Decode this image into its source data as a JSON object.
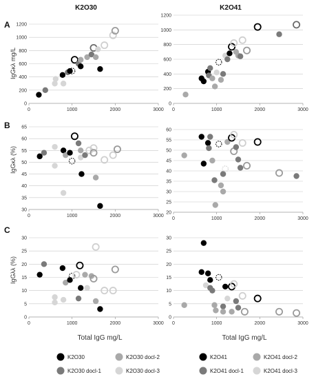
{
  "headers": [
    "K2O30",
    "K2O41"
  ],
  "row_labels": [
    "A",
    "B",
    "C"
  ],
  "x_axis_label": "Total IgG mg/L",
  "colors": {
    "fill": {
      "s1": "#000000",
      "s2": "#7a7a7a",
      "s3": "#a9a9a9",
      "s4": "#d6d6d6"
    },
    "stroke": {
      "s1": "#000000",
      "s2": "#6a6a6a",
      "s3": "#9a9a9a",
      "s4": "#cfcfcf"
    }
  },
  "legend": {
    "K2O30": [
      {
        "label": "K2O30",
        "series": "s1"
      },
      {
        "label": "K2O30 docl-2",
        "series": "s3"
      },
      {
        "label": "K2O30 docl-1",
        "series": "s2"
      },
      {
        "label": "K2O30 docl-3",
        "series": "s4"
      }
    ],
    "K2O41": [
      {
        "label": "K2O41",
        "series": "s1"
      },
      {
        "label": "K2O41 docl-2",
        "series": "s3"
      },
      {
        "label": "K2O41 docl-1",
        "series": "s2"
      },
      {
        "label": "K2O41 docl-3",
        "series": "s4"
      }
    ]
  },
  "chart_data": [
    {
      "panel": "A",
      "group": "K2O30",
      "type": "scatter",
      "xlim": [
        0,
        3000
      ],
      "xticks": [
        0,
        1000,
        2000,
        3000
      ],
      "ylim": [
        0,
        1200
      ],
      "yticks": [
        0,
        200,
        400,
        600,
        800,
        1000,
        1200
      ],
      "ylabel": "IgGκλ mg/L",
      "points": [
        {
          "x": 230,
          "y": 130,
          "s": "s1",
          "st": "filled"
        },
        {
          "x": 380,
          "y": 200,
          "s": "s2",
          "st": "filled"
        },
        {
          "x": 600,
          "y": 300,
          "s": "s4",
          "st": "filled"
        },
        {
          "x": 620,
          "y": 370,
          "s": "s4",
          "st": "filled"
        },
        {
          "x": 800,
          "y": 300,
          "s": "s4",
          "st": "filled"
        },
        {
          "x": 780,
          "y": 430,
          "s": "s1",
          "st": "filled"
        },
        {
          "x": 900,
          "y": 470,
          "s": "s2",
          "st": "filled"
        },
        {
          "x": 950,
          "y": 490,
          "s": "s1",
          "st": "filled"
        },
        {
          "x": 1000,
          "y": 490,
          "s": "s1",
          "st": "dashed"
        },
        {
          "x": 1060,
          "y": 660,
          "s": "s1",
          "st": "open"
        },
        {
          "x": 1150,
          "y": 600,
          "s": "s2",
          "st": "filled"
        },
        {
          "x": 1200,
          "y": 560,
          "s": "s1",
          "st": "filled"
        },
        {
          "x": 1200,
          "y": 660,
          "s": "s3",
          "st": "filled"
        },
        {
          "x": 1350,
          "y": 700,
          "s": "s3",
          "st": "filled"
        },
        {
          "x": 1450,
          "y": 740,
          "s": "s2",
          "st": "filled"
        },
        {
          "x": 1500,
          "y": 840,
          "s": "s2",
          "st": "open"
        },
        {
          "x": 1550,
          "y": 700,
          "s": "s3",
          "st": "filled"
        },
        {
          "x": 1650,
          "y": 520,
          "s": "s1",
          "st": "filled"
        },
        {
          "x": 1600,
          "y": 820,
          "s": "s4",
          "st": "filled"
        },
        {
          "x": 1750,
          "y": 880,
          "s": "s4",
          "st": "open"
        },
        {
          "x": 1950,
          "y": 1030,
          "s": "s4",
          "st": "open"
        },
        {
          "x": 2000,
          "y": 1100,
          "s": "s3",
          "st": "open"
        }
      ]
    },
    {
      "panel": "A",
      "group": "K2O41",
      "type": "scatter",
      "xlim": [
        0,
        3000
      ],
      "xticks": [
        0,
        1000,
        2000,
        3000
      ],
      "ylim": [
        0,
        1200
      ],
      "yticks": [
        0,
        200,
        400,
        600,
        800,
        1000,
        1200
      ],
      "ylabel": "",
      "points": [
        {
          "x": 280,
          "y": 120,
          "s": "s3",
          "st": "filled"
        },
        {
          "x": 650,
          "y": 340,
          "s": "s1",
          "st": "filled"
        },
        {
          "x": 700,
          "y": 300,
          "s": "s1",
          "st": "filled"
        },
        {
          "x": 800,
          "y": 430,
          "s": "s1",
          "st": "filled"
        },
        {
          "x": 820,
          "y": 380,
          "s": "s2",
          "st": "filled"
        },
        {
          "x": 850,
          "y": 480,
          "s": "s2",
          "st": "filled"
        },
        {
          "x": 900,
          "y": 340,
          "s": "s3",
          "st": "filled"
        },
        {
          "x": 960,
          "y": 230,
          "s": "s3",
          "st": "filled"
        },
        {
          "x": 1000,
          "y": 420,
          "s": "s4",
          "st": "filled"
        },
        {
          "x": 1050,
          "y": 560,
          "s": "s1",
          "st": "dashed"
        },
        {
          "x": 1100,
          "y": 320,
          "s": "s3",
          "st": "filled"
        },
        {
          "x": 1150,
          "y": 400,
          "s": "s2",
          "st": "filled"
        },
        {
          "x": 1200,
          "y": 650,
          "s": "s4",
          "st": "filled"
        },
        {
          "x": 1250,
          "y": 600,
          "s": "s2",
          "st": "filled"
        },
        {
          "x": 1300,
          "y": 680,
          "s": "s1",
          "st": "filled"
        },
        {
          "x": 1350,
          "y": 770,
          "s": "s1",
          "st": "open"
        },
        {
          "x": 1400,
          "y": 820,
          "s": "s4",
          "st": "open"
        },
        {
          "x": 1450,
          "y": 700,
          "s": "s3",
          "st": "filled"
        },
        {
          "x": 1500,
          "y": 650,
          "s": "s3",
          "st": "filled"
        },
        {
          "x": 1550,
          "y": 640,
          "s": "s2",
          "st": "filled"
        },
        {
          "x": 1600,
          "y": 860,
          "s": "s4",
          "st": "open"
        },
        {
          "x": 1700,
          "y": 720,
          "s": "s3",
          "st": "open"
        },
        {
          "x": 1950,
          "y": 1040,
          "s": "s1",
          "st": "open"
        },
        {
          "x": 2450,
          "y": 940,
          "s": "s2",
          "st": "filled"
        },
        {
          "x": 2850,
          "y": 1070,
          "s": "s2",
          "st": "open"
        }
      ]
    },
    {
      "panel": "B",
      "group": "K2O30",
      "type": "scatter",
      "xlim": [
        0,
        3000
      ],
      "xticks": [
        0,
        1000,
        2000,
        3000
      ],
      "ylim": [
        30,
        65
      ],
      "yticks": [
        30,
        35,
        40,
        45,
        50,
        55,
        60,
        65
      ],
      "ylabel": "IgGκλ (%)",
      "points": [
        {
          "x": 250,
          "y": 52.5,
          "s": "s1",
          "st": "filled"
        },
        {
          "x": 350,
          "y": 54,
          "s": "s2",
          "st": "filled"
        },
        {
          "x": 600,
          "y": 56.5,
          "s": "s4",
          "st": "filled"
        },
        {
          "x": 600,
          "y": 48.5,
          "s": "s4",
          "st": "filled"
        },
        {
          "x": 800,
          "y": 37,
          "s": "s4",
          "st": "filled"
        },
        {
          "x": 800,
          "y": 55,
          "s": "s1",
          "st": "filled"
        },
        {
          "x": 850,
          "y": 53,
          "s": "s3",
          "st": "filled"
        },
        {
          "x": 950,
          "y": 54,
          "s": "s1",
          "st": "filled"
        },
        {
          "x": 1000,
          "y": 50.5,
          "s": "s1",
          "st": "dashed"
        },
        {
          "x": 1060,
          "y": 61,
          "s": "s1",
          "st": "open"
        },
        {
          "x": 1150,
          "y": 58,
          "s": "s2",
          "st": "filled"
        },
        {
          "x": 1200,
          "y": 52,
          "s": "s4",
          "st": "filled"
        },
        {
          "x": 1200,
          "y": 55,
          "s": "s3",
          "st": "filled"
        },
        {
          "x": 1220,
          "y": 45,
          "s": "s1",
          "st": "filled"
        },
        {
          "x": 1300,
          "y": 53,
          "s": "s2",
          "st": "filled"
        },
        {
          "x": 1400,
          "y": 55,
          "s": "s4",
          "st": "open"
        },
        {
          "x": 1500,
          "y": 56,
          "s": "s4",
          "st": "open"
        },
        {
          "x": 1500,
          "y": 54,
          "s": "s3",
          "st": "open"
        },
        {
          "x": 1550,
          "y": 43.5,
          "s": "s3",
          "st": "filled"
        },
        {
          "x": 1650,
          "y": 31.5,
          "s": "s1",
          "st": "filled"
        },
        {
          "x": 1750,
          "y": 51,
          "s": "s4",
          "st": "open"
        },
        {
          "x": 1950,
          "y": 53,
          "s": "s4",
          "st": "open"
        },
        {
          "x": 2050,
          "y": 55.5,
          "s": "s3",
          "st": "open"
        }
      ]
    },
    {
      "panel": "B",
      "group": "K2O41",
      "type": "scatter",
      "xlim": [
        0,
        3000
      ],
      "xticks": [
        0,
        1000,
        2000,
        3000
      ],
      "ylim": [
        20,
        60
      ],
      "yticks": [
        20,
        25,
        30,
        35,
        40,
        45,
        50,
        55,
        60
      ],
      "ylabel": "",
      "points": [
        {
          "x": 250,
          "y": 47.5,
          "s": "s3",
          "st": "filled"
        },
        {
          "x": 650,
          "y": 56.5,
          "s": "s1",
          "st": "filled"
        },
        {
          "x": 700,
          "y": 43.5,
          "s": "s1",
          "st": "filled"
        },
        {
          "x": 800,
          "y": 53.5,
          "s": "s1",
          "st": "filled"
        },
        {
          "x": 820,
          "y": 51,
          "s": "s2",
          "st": "filled"
        },
        {
          "x": 850,
          "y": 56.5,
          "s": "s2",
          "st": "filled"
        },
        {
          "x": 900,
          "y": 45,
          "s": "s3",
          "st": "filled"
        },
        {
          "x": 950,
          "y": 35.5,
          "s": "s2",
          "st": "filled"
        },
        {
          "x": 970,
          "y": 23.5,
          "s": "s3",
          "st": "filled"
        },
        {
          "x": 1050,
          "y": 53,
          "s": "s1",
          "st": "dashed"
        },
        {
          "x": 1100,
          "y": 33,
          "s": "s3",
          "st": "filled"
        },
        {
          "x": 1150,
          "y": 38.5,
          "s": "s2",
          "st": "filled"
        },
        {
          "x": 1150,
          "y": 30,
          "s": "s3",
          "st": "filled"
        },
        {
          "x": 1200,
          "y": 41,
          "s": "s4",
          "st": "dashed"
        },
        {
          "x": 1250,
          "y": 54,
          "s": "s3",
          "st": "filled"
        },
        {
          "x": 1350,
          "y": 56,
          "s": "s1",
          "st": "open"
        },
        {
          "x": 1400,
          "y": 57.5,
          "s": "s4",
          "st": "open"
        },
        {
          "x": 1400,
          "y": 49.5,
          "s": "s3",
          "st": "open"
        },
        {
          "x": 1450,
          "y": 51.5,
          "s": "s2",
          "st": "filled"
        },
        {
          "x": 1500,
          "y": 45.5,
          "s": "s2",
          "st": "filled"
        },
        {
          "x": 1550,
          "y": 41.5,
          "s": "s2",
          "st": "filled"
        },
        {
          "x": 1600,
          "y": 53.5,
          "s": "s4",
          "st": "open"
        },
        {
          "x": 1700,
          "y": 42.5,
          "s": "s3",
          "st": "open"
        },
        {
          "x": 1950,
          "y": 54,
          "s": "s1",
          "st": "open"
        },
        {
          "x": 2450,
          "y": 39,
          "s": "s3",
          "st": "open"
        },
        {
          "x": 2850,
          "y": 37.5,
          "s": "s2",
          "st": "filled"
        }
      ]
    },
    {
      "panel": "C",
      "group": "K2O30",
      "type": "scatter",
      "xlim": [
        0,
        3000
      ],
      "xticks": [
        0,
        1000,
        2000,
        3000
      ],
      "ylim": [
        0,
        30
      ],
      "yticks": [
        0,
        5,
        10,
        15,
        20,
        25,
        30
      ],
      "ylabel": "IgGλλ (%)",
      "points": [
        {
          "x": 250,
          "y": 16,
          "s": "s1",
          "st": "filled"
        },
        {
          "x": 350,
          "y": 20,
          "s": "s2",
          "st": "filled"
        },
        {
          "x": 600,
          "y": 7.5,
          "s": "s4",
          "st": "filled"
        },
        {
          "x": 600,
          "y": 5.5,
          "s": "s4",
          "st": "filled"
        },
        {
          "x": 780,
          "y": 18.5,
          "s": "s1",
          "st": "filled"
        },
        {
          "x": 800,
          "y": 6.5,
          "s": "s4",
          "st": "filled"
        },
        {
          "x": 850,
          "y": 13,
          "s": "s3",
          "st": "filled"
        },
        {
          "x": 950,
          "y": 14,
          "s": "s1",
          "st": "filled"
        },
        {
          "x": 1000,
          "y": 15.5,
          "s": "s1",
          "st": "dashed"
        },
        {
          "x": 1100,
          "y": 16,
          "s": "s4",
          "st": "open"
        },
        {
          "x": 1150,
          "y": 7,
          "s": "s2",
          "st": "filled"
        },
        {
          "x": 1180,
          "y": 19.5,
          "s": "s1",
          "st": "open"
        },
        {
          "x": 1200,
          "y": 11,
          "s": "s1",
          "st": "filled"
        },
        {
          "x": 1300,
          "y": 16,
          "s": "s3",
          "st": "filled"
        },
        {
          "x": 1350,
          "y": 11,
          "s": "s4",
          "st": "filled"
        },
        {
          "x": 1450,
          "y": 15.5,
          "s": "s3",
          "st": "filled"
        },
        {
          "x": 1500,
          "y": 14.5,
          "s": "s3",
          "st": "open"
        },
        {
          "x": 1550,
          "y": 26.5,
          "s": "s4",
          "st": "open"
        },
        {
          "x": 1550,
          "y": 6,
          "s": "s3",
          "st": "filled"
        },
        {
          "x": 1650,
          "y": 3,
          "s": "s1",
          "st": "filled"
        },
        {
          "x": 1750,
          "y": 10,
          "s": "s4",
          "st": "open"
        },
        {
          "x": 1950,
          "y": 10,
          "s": "s4",
          "st": "open"
        },
        {
          "x": 2000,
          "y": 18,
          "s": "s3",
          "st": "open"
        }
      ]
    },
    {
      "panel": "C",
      "group": "K2O41",
      "type": "scatter",
      "xlim": [
        0,
        3000
      ],
      "xticks": [
        0,
        1000,
        2000,
        3000
      ],
      "ylim": [
        0,
        30
      ],
      "yticks": [
        0,
        5,
        10,
        15,
        20,
        25,
        30
      ],
      "ylabel": "",
      "points": [
        {
          "x": 250,
          "y": 4.5,
          "s": "s3",
          "st": "filled"
        },
        {
          "x": 650,
          "y": 17,
          "s": "s1",
          "st": "filled"
        },
        {
          "x": 700,
          "y": 28,
          "s": "s1",
          "st": "filled"
        },
        {
          "x": 750,
          "y": 12,
          "s": "s4",
          "st": "filled"
        },
        {
          "x": 800,
          "y": 16.5,
          "s": "s1",
          "st": "filled"
        },
        {
          "x": 850,
          "y": 14,
          "s": "s1",
          "st": "filled"
        },
        {
          "x": 850,
          "y": 11,
          "s": "s2",
          "st": "filled"
        },
        {
          "x": 900,
          "y": 10,
          "s": "s2",
          "st": "filled"
        },
        {
          "x": 950,
          "y": 4.5,
          "s": "s3",
          "st": "filled"
        },
        {
          "x": 980,
          "y": 2.5,
          "s": "s3",
          "st": "filled"
        },
        {
          "x": 1050,
          "y": 15,
          "s": "s1",
          "st": "dashed"
        },
        {
          "x": 1150,
          "y": 4,
          "s": "s2",
          "st": "filled"
        },
        {
          "x": 1150,
          "y": 2,
          "s": "s3",
          "st": "filled"
        },
        {
          "x": 1200,
          "y": 11.5,
          "s": "s1",
          "st": "filled"
        },
        {
          "x": 1250,
          "y": 7,
          "s": "s4",
          "st": "filled"
        },
        {
          "x": 1350,
          "y": 11.5,
          "s": "s1",
          "st": "open"
        },
        {
          "x": 1350,
          "y": 2,
          "s": "s3",
          "st": "filled"
        },
        {
          "x": 1400,
          "y": 12.5,
          "s": "s4",
          "st": "open"
        },
        {
          "x": 1450,
          "y": 6,
          "s": "s2",
          "st": "filled"
        },
        {
          "x": 1500,
          "y": 3.5,
          "s": "s2",
          "st": "filled"
        },
        {
          "x": 1600,
          "y": 8,
          "s": "s4",
          "st": "open"
        },
        {
          "x": 1650,
          "y": 2,
          "s": "s3",
          "st": "open"
        },
        {
          "x": 1950,
          "y": 7,
          "s": "s1",
          "st": "open"
        },
        {
          "x": 2450,
          "y": 2,
          "s": "s3",
          "st": "open"
        },
        {
          "x": 2850,
          "y": 1.5,
          "s": "s3",
          "st": "open"
        }
      ]
    }
  ]
}
